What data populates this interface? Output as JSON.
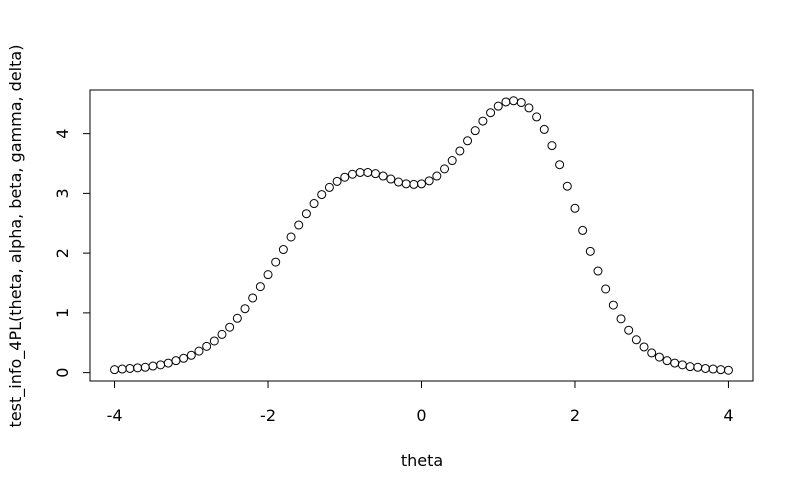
{
  "chart_data": {
    "type": "scatter",
    "x_label": "theta",
    "y_label": "test_info_4PL(theta, alpha, beta, gamma, delta)",
    "x": [
      -4.0,
      -3.9,
      -3.8,
      -3.7,
      -3.6,
      -3.5,
      -3.4,
      -3.3,
      -3.2,
      -3.1,
      -3.0,
      -2.9,
      -2.8,
      -2.7,
      -2.6,
      -2.5,
      -2.4,
      -2.3,
      -2.2,
      -2.1,
      -2.0,
      -1.9,
      -1.8,
      -1.7,
      -1.6,
      -1.5,
      -1.4,
      -1.3,
      -1.2,
      -1.1,
      -1.0,
      -0.9,
      -0.8,
      -0.7,
      -0.6,
      -0.5,
      -0.4,
      -0.3,
      -0.2,
      -0.1,
      0.0,
      0.1,
      0.2,
      0.3,
      0.4,
      0.5,
      0.6,
      0.7,
      0.8,
      0.9,
      1.0,
      1.1,
      1.2,
      1.3,
      1.4,
      1.5,
      1.6,
      1.7,
      1.8,
      1.9,
      2.0,
      2.1,
      2.2,
      2.3,
      2.4,
      2.5,
      2.6,
      2.7,
      2.8,
      2.9,
      3.0,
      3.1,
      3.2,
      3.3,
      3.4,
      3.5,
      3.6,
      3.7,
      3.8,
      3.9,
      4.0
    ],
    "values": [
      0.05,
      0.06,
      0.07,
      0.08,
      0.09,
      0.11,
      0.13,
      0.16,
      0.2,
      0.24,
      0.29,
      0.36,
      0.44,
      0.53,
      0.64,
      0.76,
      0.91,
      1.07,
      1.25,
      1.44,
      1.64,
      1.85,
      2.06,
      2.27,
      2.47,
      2.66,
      2.83,
      2.98,
      3.1,
      3.2,
      3.27,
      3.32,
      3.35,
      3.35,
      3.33,
      3.29,
      3.24,
      3.19,
      3.16,
      3.15,
      3.16,
      3.21,
      3.29,
      3.41,
      3.55,
      3.71,
      3.88,
      4.05,
      4.21,
      4.35,
      4.46,
      4.53,
      4.55,
      4.52,
      4.43,
      4.28,
      4.07,
      3.8,
      3.48,
      3.12,
      2.75,
      2.38,
      2.03,
      1.7,
      1.4,
      1.13,
      0.9,
      0.71,
      0.55,
      0.43,
      0.33,
      0.26,
      0.2,
      0.16,
      0.13,
      0.1,
      0.09,
      0.07,
      0.06,
      0.05,
      0.04
    ],
    "color": "#000000",
    "xlim": [
      -4.32,
      4.32
    ],
    "xticks": [
      -4,
      -2,
      0,
      2,
      4
    ],
    "ylim": [
      -0.14,
      4.73
    ],
    "yticks": [
      0,
      1,
      2,
      3,
      4
    ]
  }
}
